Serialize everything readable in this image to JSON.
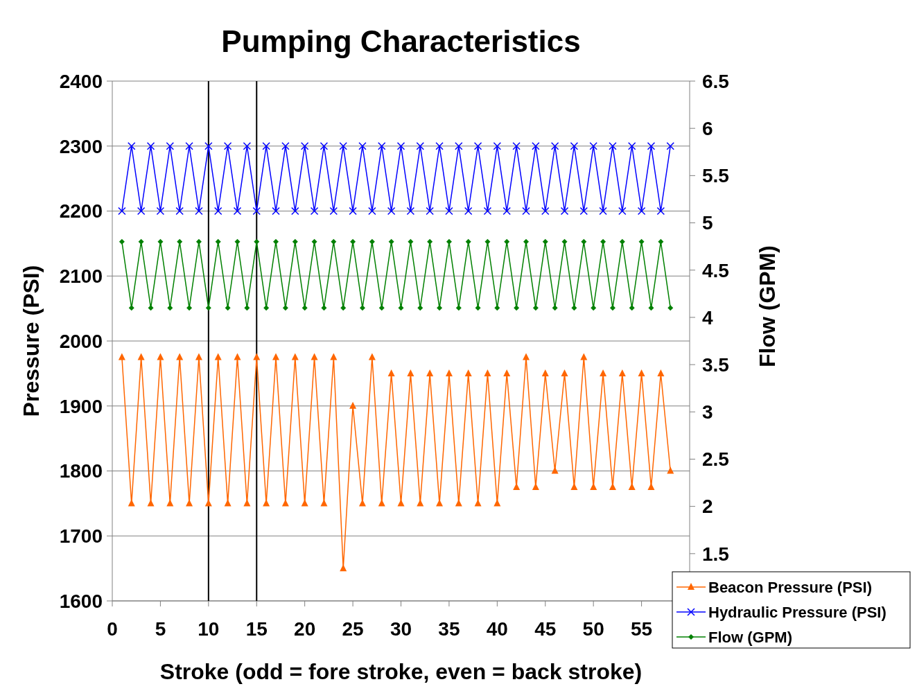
{
  "chart_data": {
    "type": "line",
    "title": "Pumping  Characteristics",
    "xlabel": "Stroke (odd = fore stroke, even = back stroke)",
    "ylabel": "Pressure (PSI)",
    "y2label": "Flow (GPM)",
    "x": [
      1,
      2,
      3,
      4,
      5,
      6,
      7,
      8,
      9,
      10,
      11,
      12,
      13,
      14,
      15,
      16,
      17,
      18,
      19,
      20,
      21,
      22,
      23,
      24,
      25,
      26,
      27,
      28,
      29,
      30,
      31,
      32,
      33,
      34,
      35,
      36,
      37,
      38,
      39,
      40,
      41,
      42,
      43,
      44,
      45,
      46,
      47,
      48,
      49,
      50,
      51,
      52,
      53,
      54,
      55,
      56,
      57,
      58
    ],
    "series": [
      {
        "name": "Beacon Pressure (PSI)",
        "color": "#ff6600",
        "marker": "triangle",
        "values": [
          1975,
          1750,
          1975,
          1750,
          1975,
          1750,
          1975,
          1750,
          1975,
          1750,
          1975,
          1750,
          1975,
          1750,
          1975,
          1750,
          1975,
          1750,
          1975,
          1750,
          1975,
          1750,
          1975,
          1650,
          1900,
          1750,
          1975,
          1750,
          1950,
          1750,
          1950,
          1750,
          1950,
          1750,
          1950,
          1750,
          1950,
          1750,
          1950,
          1750,
          1950,
          1775,
          1975,
          1775,
          1950,
          1800,
          1950,
          1775,
          1975,
          1775,
          1950,
          1775,
          1950,
          1775,
          1950,
          1775,
          1950,
          1800
        ]
      },
      {
        "name": "Hydraulic Pressure (PSI)",
        "color": "#0000ff",
        "marker": "cross",
        "values": [
          2200,
          2300,
          2200,
          2300,
          2200,
          2300,
          2200,
          2300,
          2200,
          2300,
          2200,
          2300,
          2200,
          2300,
          2200,
          2300,
          2200,
          2300,
          2200,
          2300,
          2200,
          2300,
          2200,
          2300,
          2200,
          2300,
          2200,
          2300,
          2200,
          2300,
          2200,
          2300,
          2200,
          2300,
          2200,
          2300,
          2200,
          2300,
          2200,
          2300,
          2200,
          2300,
          2200,
          2300,
          2200,
          2300,
          2200,
          2300,
          2200,
          2300,
          2200,
          2300,
          2200,
          2300,
          2200,
          2300,
          2200,
          2300
        ]
      },
      {
        "name": "Flow (GPM)",
        "color": "#008000",
        "marker": "diamond",
        "axis": "y2",
        "values": [
          4.8,
          4.1,
          4.8,
          4.1,
          4.8,
          4.1,
          4.8,
          4.1,
          4.8,
          4.1,
          4.8,
          4.1,
          4.8,
          4.1,
          4.8,
          4.1,
          4.8,
          4.1,
          4.8,
          4.1,
          4.8,
          4.1,
          4.8,
          4.1,
          4.8,
          4.1,
          4.8,
          4.1,
          4.8,
          4.1,
          4.8,
          4.1,
          4.8,
          4.1,
          4.8,
          4.1,
          4.8,
          4.1,
          4.8,
          4.1,
          4.8,
          4.1,
          4.8,
          4.1,
          4.8,
          4.1,
          4.8,
          4.1,
          4.8,
          4.1,
          4.8,
          4.1,
          4.8,
          4.1,
          4.8,
          4.1,
          4.8,
          4.1
        ]
      }
    ],
    "xlim": [
      0,
      60
    ],
    "xticks": [
      0,
      5,
      10,
      15,
      20,
      25,
      30,
      35,
      40,
      45,
      50,
      55
    ],
    "ylim": [
      1600,
      2400
    ],
    "yticks": [
      1600,
      1700,
      1800,
      1900,
      2000,
      2100,
      2200,
      2300,
      2400
    ],
    "y2lim": [
      1,
      6.5
    ],
    "y2ticks": [
      1.5,
      2,
      2.5,
      3,
      3.5,
      4,
      4.5,
      5,
      5.5,
      6,
      6.5
    ],
    "ref_lines": [
      {
        "axis": "x",
        "value": 10,
        "color": "#000000"
      },
      {
        "axis": "x",
        "value": 15,
        "color": "#000000"
      }
    ],
    "grid": "y",
    "legend": "bottom right",
    "line_style": "solid"
  }
}
